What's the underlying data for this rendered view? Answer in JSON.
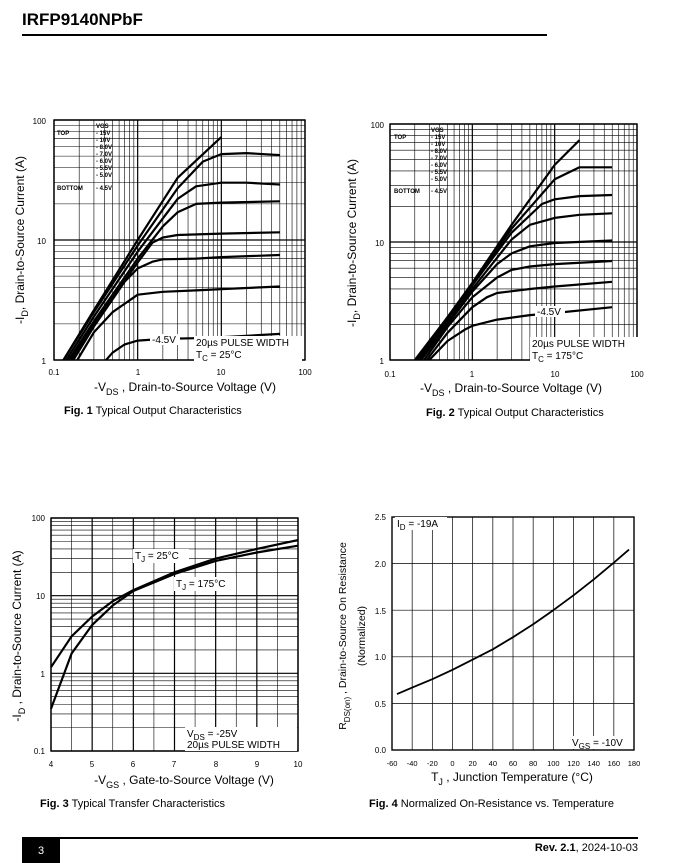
{
  "header": {
    "part_number": "IRFP9140NPbF"
  },
  "footer": {
    "page_number": "3",
    "revision_label": "Rev. 2.1",
    "revision_date": ", 2024-10-03"
  },
  "figures": {
    "fig1": {
      "number": "Fig. 1",
      "caption": " Typical Output Characteristics",
      "ylabel_pre": "-I",
      "ylabel_sub": "D",
      "ylabel_post": ", Drain-to-Source Current (A)",
      "xlabel_pre": "-V",
      "xlabel_sub": "DS",
      "xlabel_post": " , Drain-to-Source Voltage (V)",
      "x_ticks": [
        "0.1",
        "1",
        "10",
        "100"
      ],
      "y_ticks": [
        "1",
        "10",
        "100"
      ],
      "pulse": "20µs PULSE WIDTH",
      "temp_pre": "T",
      "temp_sub": "C",
      "temp_post": " = 25°C",
      "curve_label": "-4.5V",
      "legend": {
        "head": "VGS",
        "top": "TOP",
        "bottom": "BOTTOM",
        "values": [
          "- 15V",
          "- 10V",
          "- 8.0V",
          "- 7.0V",
          "- 6.0V",
          "- 5.5V",
          "- 5.0V",
          "- 4.5V"
        ]
      }
    },
    "fig2": {
      "number": "Fig. 2",
      "caption": " Typical Output Characteristics",
      "ylabel_pre": "-I",
      "ylabel_sub": "D",
      "ylabel_post": ", Drain-to-Source Current (A)",
      "xlabel_pre": "-V",
      "xlabel_sub": "DS",
      "xlabel_post": " , Drain-to-Source Voltage (V)",
      "x_ticks": [
        "0.1",
        "1",
        "10",
        "100"
      ],
      "y_ticks": [
        "1",
        "10",
        "100"
      ],
      "pulse": "20µs PULSE WIDTH",
      "temp_pre": "T",
      "temp_sub": "C",
      "temp_post": " = 175°C",
      "curve_label": "-4.5V",
      "legend": {
        "head": "VGS",
        "top": "TOP",
        "bottom": "BOTTOM",
        "values": [
          "- 15V",
          "- 10V",
          "- 8.0V",
          "- 7.0V",
          "- 6.0V",
          "- 5.5V",
          "- 5.0V",
          "- 4.5V"
        ]
      }
    },
    "fig3": {
      "number": "Fig. 3",
      "caption": " Typical Transfer Characteristics",
      "ylabel_pre": "-I",
      "ylabel_sub": "D",
      "ylabel_post": " , Drain-to-Source Current (A)",
      "xlabel_pre": "-V",
      "xlabel_sub": "GS",
      "xlabel_post": " , Gate-to-Source Voltage (V)",
      "x_ticks": [
        "4",
        "5",
        "6",
        "7",
        "8",
        "9",
        "10"
      ],
      "y_ticks": [
        "0.1",
        "1",
        "10",
        "100"
      ],
      "label_25_pre": "T",
      "label_25_sub": "J",
      "label_25_post": " = 25°C",
      "label_175_pre": "T",
      "label_175_sub": "J",
      "label_175_post": " = 175°C",
      "vds_pre": "V",
      "vds_sub": "DS",
      "vds_post": " = -25V",
      "pulse": "20µs PULSE WIDTH"
    },
    "fig4": {
      "number": "Fig. 4",
      "caption": " Normalized On-Resistance vs. Temperature",
      "ylabel_line1": "R",
      "ylabel_line1_sub": "DS(on)",
      "ylabel_line1_post": " ,  Drain-to-Source On Resistance",
      "ylabel_line2": "(Normalized)",
      "xlabel_pre": "T",
      "xlabel_sub": "J",
      "xlabel_post": " , Junction Temperature (°C)",
      "x_ticks": [
        "-60",
        "-40",
        "-20",
        "0",
        "20",
        "40",
        "60",
        "80",
        "100",
        "120",
        "140",
        "160",
        "180"
      ],
      "y_ticks": [
        "0.0",
        "0.5",
        "1.0",
        "1.5",
        "2.0",
        "2.5"
      ],
      "id_pre": "I",
      "id_sub": "D",
      "id_post": " = -19A",
      "vgs_pre": "V",
      "vgs_sub": "GS",
      "vgs_post": " = -10V"
    }
  },
  "chart_data": [
    {
      "type": "line",
      "title": "Typical Output Characteristics",
      "xlabel": "-VDS , Drain-to-Source Voltage (V)",
      "ylabel": "-ID, Drain-to-Source Current (A)",
      "xscale": "log",
      "yscale": "log",
      "xlim": [
        0.1,
        100
      ],
      "ylim": [
        1,
        100
      ],
      "series": [
        {
          "name": "-15V",
          "x": [
            0.13,
            0.3,
            1,
            3,
            10
          ],
          "y": [
            1,
            2.6,
            10,
            33,
            72
          ]
        },
        {
          "name": "-10V",
          "x": [
            0.13,
            0.3,
            1,
            3,
            6,
            10,
            20,
            50
          ],
          "y": [
            1,
            2.5,
            9,
            27,
            45,
            52,
            53,
            51
          ]
        },
        {
          "name": "-8.0V",
          "x": [
            0.14,
            0.3,
            1,
            3,
            5,
            10,
            20,
            50
          ],
          "y": [
            1,
            2.3,
            8,
            22,
            28,
            30,
            30,
            29
          ]
        },
        {
          "name": "-7.0V",
          "x": [
            0.15,
            0.3,
            1,
            2,
            3,
            5,
            10,
            50
          ],
          "y": [
            1,
            2.1,
            7,
            13,
            17,
            20,
            20.5,
            21
          ]
        },
        {
          "name": "-6.0V",
          "x": [
            0.16,
            0.3,
            1,
            1.5,
            2,
            3,
            10,
            50
          ],
          "y": [
            1,
            2,
            6.5,
            9.5,
            10.5,
            11,
            11.3,
            11.6
          ]
        },
        {
          "name": "-5.5V",
          "x": [
            0.17,
            0.3,
            0.7,
            1,
            1.5,
            2,
            5,
            10,
            50
          ],
          "y": [
            1,
            1.9,
            4.5,
            5.8,
            6.6,
            6.9,
            7,
            7.2,
            7.5
          ]
        },
        {
          "name": "-5.0V",
          "x": [
            0.19,
            0.3,
            0.5,
            1,
            2,
            5,
            10,
            50
          ],
          "y": [
            1,
            1.7,
            2.5,
            3.5,
            3.7,
            3.8,
            3.9,
            4.1
          ]
        },
        {
          "name": "-4.5V",
          "x": [
            0.42,
            0.5,
            0.7,
            1,
            2,
            5,
            10,
            50
          ],
          "y": [
            1,
            1.15,
            1.35,
            1.45,
            1.5,
            1.52,
            1.55,
            1.65
          ]
        }
      ]
    },
    {
      "type": "line",
      "title": "Typical Output Characteristics",
      "xlabel": "-VDS , Drain-to-Source Voltage (V)",
      "ylabel": "-ID, Drain-to-Source Current (A)",
      "xscale": "log",
      "yscale": "log",
      "xlim": [
        0.1,
        100
      ],
      "ylim": [
        1,
        100
      ],
      "series": [
        {
          "name": "-15V",
          "x": [
            0.2,
            0.5,
            1,
            3,
            10,
            20
          ],
          "y": [
            1,
            2.3,
            4.5,
            14,
            45,
            73
          ]
        },
        {
          "name": "-10V",
          "x": [
            0.21,
            0.5,
            1,
            3,
            10,
            20,
            50
          ],
          "y": [
            1,
            2.3,
            4.4,
            13,
            34,
            43,
            43
          ]
        },
        {
          "name": "-8.0V",
          "x": [
            0.22,
            0.5,
            1,
            3,
            7,
            10,
            20,
            50
          ],
          "y": [
            1,
            2.2,
            4.3,
            12,
            21,
            23,
            24.5,
            25
          ]
        },
        {
          "name": "-7.0V",
          "x": [
            0.23,
            0.5,
            1,
            3,
            5,
            10,
            20,
            50
          ],
          "y": [
            1,
            2.1,
            4,
            10.5,
            14,
            16,
            17,
            17.5
          ]
        },
        {
          "name": "-6.0V",
          "x": [
            0.24,
            0.5,
            1,
            2,
            3,
            5,
            10,
            50
          ],
          "y": [
            1,
            2,
            3.8,
            6.5,
            8,
            9.2,
            9.8,
            10.3
          ]
        },
        {
          "name": "-5.5V",
          "x": [
            0.26,
            0.5,
            1,
            2,
            3,
            5,
            10,
            50
          ],
          "y": [
            1,
            1.9,
            3.4,
            5,
            5.8,
            6.2,
            6.5,
            6.9
          ]
        },
        {
          "name": "-5.0V",
          "x": [
            0.28,
            0.5,
            1,
            1.5,
            2,
            5,
            10,
            50
          ],
          "y": [
            1,
            1.7,
            2.8,
            3.4,
            3.7,
            4,
            4.2,
            4.6
          ]
        },
        {
          "name": "-4.5V",
          "x": [
            0.3,
            0.5,
            0.8,
            1,
            2,
            5,
            10,
            50
          ],
          "y": [
            1,
            1.45,
            1.8,
            1.95,
            2.2,
            2.4,
            2.5,
            2.8
          ]
        }
      ]
    },
    {
      "type": "line",
      "title": "Typical Transfer Characteristics",
      "xlabel": "-VGS , Gate-to-Source Voltage (V)",
      "ylabel": "-ID , Drain-to-Source Current (A)",
      "yscale": "log",
      "xlim": [
        4,
        10
      ],
      "ylim": [
        0.1,
        100
      ],
      "series": [
        {
          "name": "TJ = 25°C",
          "x": [
            4,
            4.5,
            5,
            5.5,
            6,
            7,
            8,
            9,
            10
          ],
          "y": [
            0.35,
            1.8,
            4.2,
            7.5,
            11.5,
            19,
            28,
            36,
            44
          ]
        },
        {
          "name": "TJ = 175°C",
          "x": [
            4,
            4.5,
            5,
            5.5,
            6,
            7,
            8,
            9,
            10
          ],
          "y": [
            1.2,
            3.0,
            5.4,
            8.5,
            11.8,
            20,
            30,
            40,
            52
          ]
        }
      ]
    },
    {
      "type": "line",
      "title": "Normalized On-Resistance vs. Temperature",
      "xlabel": "TJ , Junction Temperature (°C)",
      "ylabel": "RDS(on) , Drain-to-Source On Resistance (Normalized)",
      "xlim": [
        -60,
        180
      ],
      "ylim": [
        0,
        2.5
      ],
      "series": [
        {
          "name": "ID = -19A",
          "x": [
            -55,
            -40,
            -20,
            0,
            20,
            40,
            60,
            80,
            100,
            120,
            140,
            160,
            175
          ],
          "y": [
            0.6,
            0.67,
            0.76,
            0.86,
            0.97,
            1.08,
            1.21,
            1.35,
            1.5,
            1.66,
            1.83,
            2.01,
            2.15
          ]
        }
      ]
    }
  ]
}
